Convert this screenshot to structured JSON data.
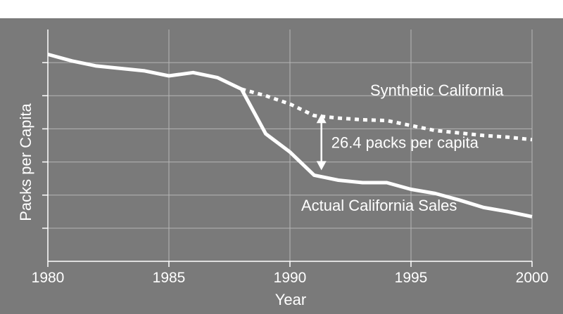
{
  "chart_data": {
    "type": "line",
    "title": "",
    "xlabel": "Year",
    "ylabel": "Packs per Capita",
    "xlim": [
      1980,
      2000
    ],
    "ylim": [
      0,
      140
    ],
    "x_ticks": [
      1980,
      1985,
      1990,
      1995,
      2000
    ],
    "x_tick_labels": [
      "1980",
      "1985",
      "1990",
      "1995",
      "2000"
    ],
    "y_ticks": [
      20,
      40,
      60,
      80,
      100,
      120
    ],
    "grid": true,
    "legend": "none",
    "series": [
      {
        "name": "Actual California Sales",
        "style": "solid",
        "x": [
          1980,
          1981,
          1982,
          1983,
          1984,
          1985,
          1986,
          1987,
          1988,
          1989,
          1990,
          1991,
          1992,
          1993,
          1994,
          1995,
          1996,
          1997,
          1998,
          1999,
          2000
        ],
        "values": [
          125,
          121,
          118,
          116.5,
          115,
          112,
          114,
          111,
          104,
          77,
          66,
          52,
          49,
          47.5,
          47.5,
          43.5,
          41,
          37,
          32.5,
          30,
          27
        ]
      },
      {
        "name": "Synthetic California",
        "style": "dotted",
        "x": [
          1988,
          1989,
          1990,
          1991,
          1992,
          1993,
          1994,
          1995,
          1996,
          1997,
          1998,
          1999,
          2000
        ],
        "values": [
          104,
          100,
          95,
          88,
          86.5,
          85.5,
          85,
          82,
          79,
          77.5,
          76,
          75,
          73.5
        ]
      }
    ],
    "annotations": [
      {
        "text": "26.4 packs per capita",
        "type": "gap-arrow",
        "x": 1991.3,
        "y_from": 89,
        "y_to": 55
      }
    ],
    "colors": {
      "background": "#7a7a7a",
      "lines": "#ffffff",
      "grid": "#b5b5b5"
    }
  }
}
